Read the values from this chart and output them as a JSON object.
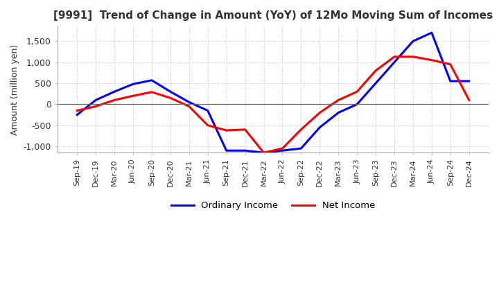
{
  "title": "[9991]  Trend of Change in Amount (YoY) of 12Mo Moving Sum of Incomes",
  "ylabel": "Amount (million yen)",
  "ylim": [
    -1150,
    1850
  ],
  "yticks": [
    -1000,
    -500,
    0,
    500,
    1000,
    1500
  ],
  "background_color": "#ffffff",
  "grid_color": "#aaaaaa",
  "line_blue": "#0000ff",
  "line_red": "#ff0000",
  "x_labels": [
    "Sep-19",
    "Dec-19",
    "Mar-20",
    "Jun-20",
    "Sep-20",
    "Dec-20",
    "Mar-21",
    "Jun-21",
    "Sep-21",
    "Dec-21",
    "Mar-22",
    "Jun-22",
    "Sep-22",
    "Dec-22",
    "Mar-23",
    "Jun-23",
    "Sep-23",
    "Dec-23",
    "Mar-24",
    "Jun-24",
    "Sep-24",
    "Dec-24"
  ],
  "ordinary_income": [
    -250,
    100,
    300,
    480,
    570,
    300,
    50,
    -150,
    -1100,
    -1100,
    -1150,
    -1100,
    -1050,
    -550,
    -200,
    0,
    500,
    1000,
    1500,
    1700,
    550,
    550
  ],
  "net_income": [
    -150,
    -50,
    100,
    200,
    290,
    150,
    -50,
    -500,
    -620,
    -600,
    -1150,
    -1050,
    -600,
    -200,
    100,
    300,
    800,
    1130,
    1130,
    1050,
    950,
    100
  ],
  "legend_ordinary": "Ordinary Income",
  "legend_net": "Net Income"
}
